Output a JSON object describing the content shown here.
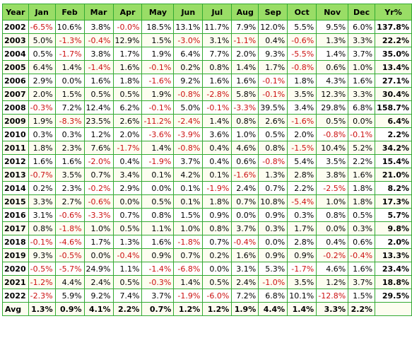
{
  "headers": [
    "Year",
    "Jan",
    "Feb",
    "Mar",
    "Apr",
    "May",
    "Jun",
    "Jul",
    "Aug",
    "Sep",
    "Oct",
    "Nov",
    "Dec",
    "Yr%"
  ],
  "rows": [
    {
      "year": "2002",
      "values": [
        "-6.5%",
        "10.6%",
        "3.8%",
        "-0.0%",
        "18.5%",
        "13.1%",
        "11.7%",
        "7.9%",
        "12.0%",
        "5.5%",
        "9.5%",
        "6.0%"
      ],
      "total": "137.8%"
    },
    {
      "year": "2003",
      "values": [
        "5.0%",
        "-1.3%",
        "-0.4%",
        "12.9%",
        "1.5%",
        "-3.0%",
        "3.1%",
        "-1.1%",
        "0.4%",
        "-0.6%",
        "1.3%",
        "3.3%"
      ],
      "total": "22.2%"
    },
    {
      "year": "2004",
      "values": [
        "0.5%",
        "-1.7%",
        "3.8%",
        "1.7%",
        "1.9%",
        "6.4%",
        "7.7%",
        "2.0%",
        "9.3%",
        "-5.5%",
        "1.4%",
        "3.7%"
      ],
      "total": "35.0%"
    },
    {
      "year": "2005",
      "values": [
        "6.4%",
        "1.4%",
        "-1.4%",
        "1.6%",
        "-0.1%",
        "0.2%",
        "0.8%",
        "1.4%",
        "1.7%",
        "-0.8%",
        "0.6%",
        "1.0%"
      ],
      "total": "13.4%"
    },
    {
      "year": "2006",
      "values": [
        "2.9%",
        "0.0%",
        "1.6%",
        "1.8%",
        "-1.6%",
        "9.2%",
        "1.6%",
        "1.6%",
        "-0.1%",
        "1.8%",
        "4.3%",
        "1.6%"
      ],
      "total": "27.1%"
    },
    {
      "year": "2007",
      "values": [
        "2.0%",
        "1.5%",
        "0.5%",
        "0.5%",
        "1.9%",
        "-0.8%",
        "-2.8%",
        "5.8%",
        "-0.1%",
        "3.5%",
        "12.3%",
        "3.3%"
      ],
      "total": "30.4%"
    },
    {
      "year": "2008",
      "values": [
        "-0.3%",
        "7.2%",
        "12.4%",
        "6.2%",
        "-0.1%",
        "5.0%",
        "-0.1%",
        "-3.3%",
        "39.5%",
        "3.4%",
        "29.8%",
        "6.8%"
      ],
      "total": "158.7%"
    },
    {
      "year": "2009",
      "values": [
        "1.9%",
        "-8.3%",
        "23.5%",
        "2.6%",
        "-11.2%",
        "-2.4%",
        "1.4%",
        "0.8%",
        "2.6%",
        "-1.6%",
        "0.5%",
        "0.0%"
      ],
      "total": "6.4%"
    },
    {
      "year": "2010",
      "values": [
        "0.3%",
        "0.3%",
        "1.2%",
        "2.0%",
        "-3.6%",
        "-3.9%",
        "3.6%",
        "1.0%",
        "0.5%",
        "2.0%",
        "-0.8%",
        "-0.1%"
      ],
      "total": "2.2%"
    },
    {
      "year": "2011",
      "values": [
        "1.8%",
        "2.3%",
        "7.6%",
        "-1.7%",
        "1.4%",
        "-0.8%",
        "0.4%",
        "4.6%",
        "0.8%",
        "-1.5%",
        "10.4%",
        "5.2%"
      ],
      "total": "34.2%"
    },
    {
      "year": "2012",
      "values": [
        "1.6%",
        "1.6%",
        "-2.0%",
        "0.4%",
        "-1.9%",
        "3.7%",
        "0.4%",
        "0.6%",
        "-0.8%",
        "5.4%",
        "3.5%",
        "2.2%"
      ],
      "total": "15.4%"
    },
    {
      "year": "2013",
      "values": [
        "-0.7%",
        "3.5%",
        "0.7%",
        "3.4%",
        "0.1%",
        "4.2%",
        "0.1%",
        "-1.6%",
        "1.3%",
        "2.8%",
        "3.8%",
        "1.6%"
      ],
      "total": "21.0%"
    },
    {
      "year": "2014",
      "values": [
        "0.2%",
        "2.3%",
        "-0.2%",
        "2.9%",
        "0.0%",
        "0.1%",
        "-1.9%",
        "2.4%",
        "0.7%",
        "2.2%",
        "-2.5%",
        "1.8%"
      ],
      "total": "8.2%"
    },
    {
      "year": "2015",
      "values": [
        "3.3%",
        "2.7%",
        "-0.6%",
        "0.0%",
        "0.5%",
        "0.1%",
        "1.8%",
        "0.7%",
        "10.8%",
        "-5.4%",
        "1.0%",
        "1.8%"
      ],
      "total": "17.3%"
    },
    {
      "year": "2016",
      "values": [
        "3.1%",
        "-0.6%",
        "-3.3%",
        "0.7%",
        "0.8%",
        "1.5%",
        "0.9%",
        "0.0%",
        "0.9%",
        "0.3%",
        "0.8%",
        "0.5%"
      ],
      "total": "5.7%"
    },
    {
      "year": "2017",
      "values": [
        "0.8%",
        "-1.8%",
        "1.0%",
        "0.5%",
        "1.1%",
        "1.0%",
        "0.8%",
        "3.7%",
        "0.3%",
        "1.7%",
        "0.0%",
        "0.3%"
      ],
      "total": "9.8%"
    },
    {
      "year": "2018",
      "values": [
        "-0.1%",
        "-4.6%",
        "1.7%",
        "1.3%",
        "1.6%",
        "-1.8%",
        "0.7%",
        "-0.4%",
        "0.0%",
        "2.8%",
        "0.4%",
        "0.6%"
      ],
      "total": "2.0%"
    },
    {
      "year": "2019",
      "values": [
        "9.3%",
        "-0.5%",
        "0.0%",
        "-0.4%",
        "0.9%",
        "0.7%",
        "0.2%",
        "1.6%",
        "0.9%",
        "0.9%",
        "-0.2%",
        "-0.4%"
      ],
      "total": "13.3%"
    },
    {
      "year": "2020",
      "values": [
        "-0.5%",
        "-5.7%",
        "24.9%",
        "1.1%",
        "-1.4%",
        "-6.8%",
        "0.0%",
        "3.1%",
        "5.3%",
        "-1.7%",
        "4.6%",
        "1.6%"
      ],
      "total": "23.4%"
    },
    {
      "year": "2021",
      "values": [
        "-1.2%",
        "4.4%",
        "2.4%",
        "0.5%",
        "-0.3%",
        "1.4%",
        "0.5%",
        "2.4%",
        "-1.0%",
        "3.5%",
        "1.2%",
        "3.7%"
      ],
      "total": "18.8%"
    },
    {
      "year": "2022",
      "values": [
        "-2.3%",
        "5.9%",
        "9.2%",
        "7.4%",
        "3.7%",
        "-1.9%",
        "-6.0%",
        "7.2%",
        "6.8%",
        "10.1%",
        "-12.8%",
        "1.5%"
      ],
      "total": "29.5%"
    }
  ],
  "avg": {
    "label": "Avg",
    "values": [
      "1.3%",
      "0.9%",
      "4.1%",
      "2.2%",
      "0.7%",
      "1.2%",
      "1.2%",
      "1.9%",
      "4.4%",
      "1.4%",
      "3.3%",
      "2.2%"
    ],
    "total": ""
  },
  "colors": {
    "header_bg": "#99dd66",
    "border": "#33aa33",
    "negative": "#cc1111",
    "alt_row": "#fdfdf0"
  }
}
